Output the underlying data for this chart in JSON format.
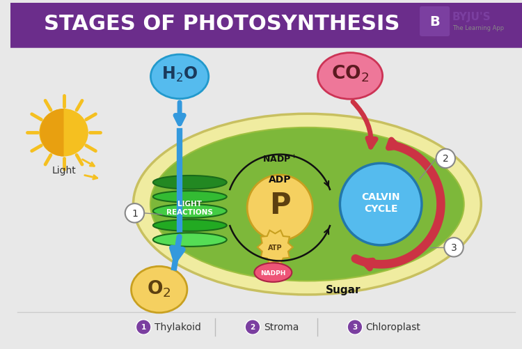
{
  "title": "STAGES OF PHOTOSYNTHESIS",
  "title_bg_color": "#6B2D8B",
  "title_text_color": "#FFFFFF",
  "bg_color": "#E8E8E8",
  "chloroplast_outer_color": "#F0ECA0",
  "chloroplast_inner_color": "#7DB83A",
  "h2o_color": "#55BBEE",
  "co2_color": "#EE7799",
  "o2_color": "#F5D060",
  "p_circle_color": "#F5D060",
  "atp_color": "#F5D060",
  "nadph_color": "#EE5577",
  "calvin_color": "#55BBEE",
  "sun_color": "#F5C020",
  "sun_dark": "#E8A010",
  "arrow_color": "#3399DD",
  "red_arrow_color": "#CC3344",
  "label_color": "#7B3FA0",
  "legend_items": [
    {
      "num": "1",
      "label": "Thylakoid"
    },
    {
      "num": "2",
      "label": "Stroma"
    },
    {
      "num": "3",
      "label": "Chloroplast"
    }
  ],
  "byju_logo_color": "#7B3FA0"
}
